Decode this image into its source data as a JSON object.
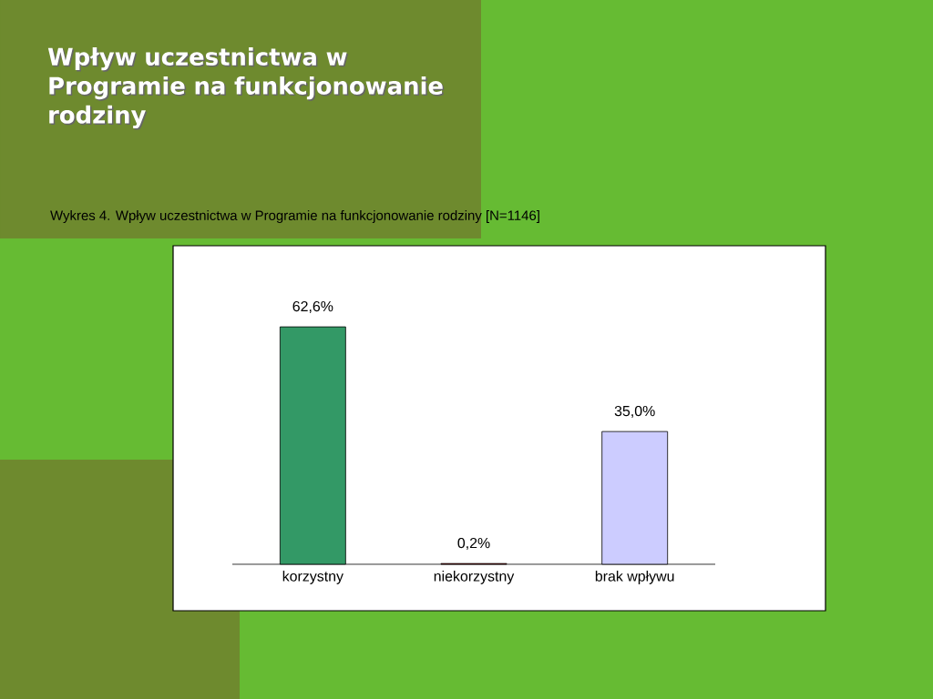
{
  "chart_data": {
    "type": "bar",
    "title": "Wpływ uczestnictwa w Programie na funkcjonowanie rodziny",
    "subtitle": "Wykres 4.  Wpływ uczestnictwa w Programie na funkcjonowanie rodziny  [N=1146]",
    "categories": [
      "korzystny",
      "niekorzystny",
      "brak wpływu"
    ],
    "values": [
      62.6,
      0.2,
      35.0
    ],
    "colors": [
      "#339966",
      "#c00000",
      "#ccccff"
    ],
    "value_labels": [
      "62,6%",
      "0,2%",
      "35,0%"
    ]
  }
}
